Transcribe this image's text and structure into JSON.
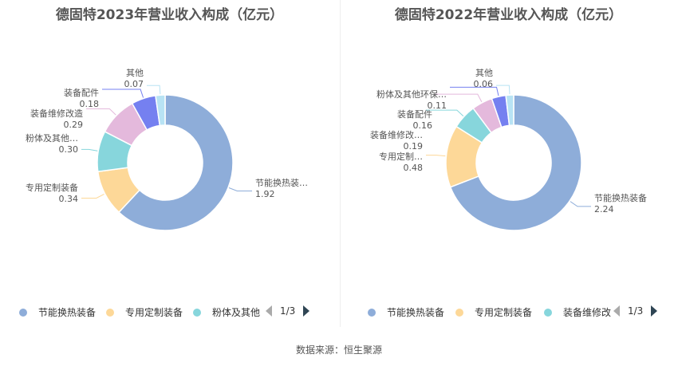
{
  "colors": [
    "#8eadd9",
    "#fdd898",
    "#87d6dc",
    "#e4b9dc",
    "#7580f0",
    "#b8e3f4"
  ],
  "chart_data": [
    {
      "type": "pie",
      "title": "德固特2023年营业收入构成（亿元）",
      "slices": [
        {
          "name": "节能换热装备",
          "value": 1.92,
          "label": "节能换热装…",
          "value_label": "1.92"
        },
        {
          "name": "专用定制装备",
          "value": 0.34,
          "label": "专用定制装备",
          "value_label": "0.34"
        },
        {
          "name": "粉体及其他",
          "value": 0.3,
          "label": "粉体及其他…",
          "value_label": "0.30"
        },
        {
          "name": "装备维修改造",
          "value": 0.29,
          "label": "装备维修改造",
          "value_label": "0.29"
        },
        {
          "name": "装备配件",
          "value": 0.18,
          "label": "装备配件",
          "value_label": "0.18"
        },
        {
          "name": "其他",
          "value": 0.07,
          "label": "其他",
          "value_label": "0.07"
        }
      ],
      "legend": [
        "节能换热装备",
        "专用定制装备",
        "粉体及其他"
      ],
      "pager": "1/3"
    },
    {
      "type": "pie",
      "title": "德固特2022年营业收入构成（亿元）",
      "slices": [
        {
          "name": "节能换热装备",
          "value": 2.24,
          "label": "节能换热装备",
          "value_label": "2.24"
        },
        {
          "name": "专用定制装备",
          "value": 0.48,
          "label": "专用定制…",
          "value_label": "0.48"
        },
        {
          "name": "装备维修改造",
          "value": 0.19,
          "label": "装备维修改…",
          "value_label": "0.19"
        },
        {
          "name": "装备配件",
          "value": 0.16,
          "label": "装备配件",
          "value_label": "0.16"
        },
        {
          "name": "粉体及其他环保装备",
          "value": 0.11,
          "label": "粉体及其他环保…",
          "value_label": "0.11"
        },
        {
          "name": "其他",
          "value": 0.06,
          "label": "其他",
          "value_label": "0.06"
        }
      ],
      "legend": [
        "节能换热装备",
        "专用定制装备",
        "装备维修改"
      ],
      "pager": "1/3"
    }
  ],
  "source": "数据来源：恒生聚源"
}
